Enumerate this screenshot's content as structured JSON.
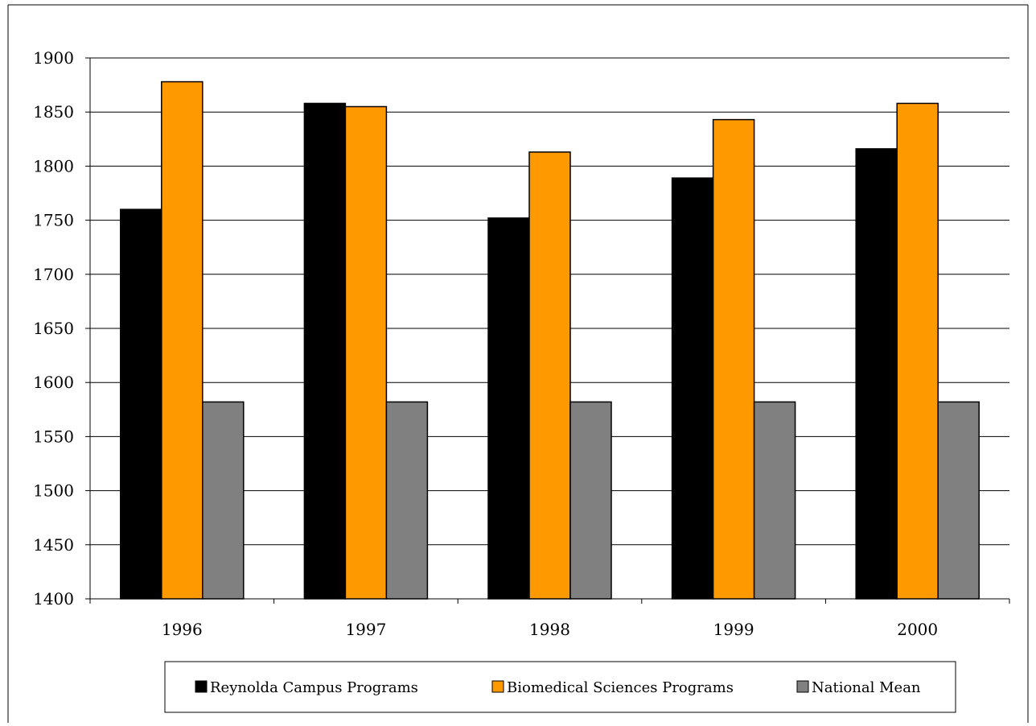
{
  "chart_data": {
    "type": "bar",
    "title": "",
    "xlabel": "",
    "ylabel": "",
    "categories": [
      "1996",
      "1997",
      "1998",
      "1999",
      "2000"
    ],
    "series": [
      {
        "name": "Reynolda Campus Programs",
        "values": [
          1760,
          1858,
          1752,
          1789,
          1816
        ],
        "color": "#000000"
      },
      {
        "name": "Biomedical Sciences Programs",
        "values": [
          1878,
          1855,
          1813,
          1843,
          1858
        ],
        "color": "#FF9900"
      },
      {
        "name": "National Mean",
        "values": [
          1582,
          1582,
          1582,
          1582,
          1582
        ],
        "color": "#808080"
      }
    ],
    "ylim": [
      1400,
      1900
    ],
    "yticks": [
      1400,
      1450,
      1500,
      1550,
      1600,
      1650,
      1700,
      1750,
      1800,
      1850,
      1900
    ],
    "grid": true,
    "legend": "bottom"
  }
}
